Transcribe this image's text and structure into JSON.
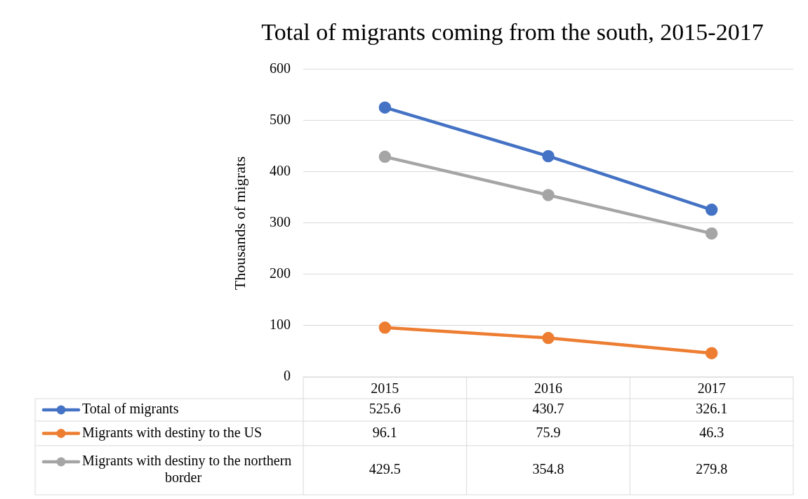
{
  "chart_data": {
    "type": "line",
    "title": "Total of migrants coming from the south, 2015-2017",
    "ylabel": "Thousands of migrats",
    "categories": [
      "2015",
      "2016",
      "2017"
    ],
    "series": [
      {
        "name": "Total of migrants",
        "color": "#4472c4",
        "values": [
          525.6,
          430.7,
          326.1
        ]
      },
      {
        "name": "Migrants with destiny to the US",
        "color": "#ed7d31",
        "values": [
          96.1,
          75.9,
          46.3
        ]
      },
      {
        "name": "Migrants with destiny to the northern border",
        "color": "#a5a5a5",
        "values": [
          429.5,
          354.8,
          279.8
        ]
      }
    ],
    "ylim": [
      0,
      600
    ],
    "yticks": [
      0,
      100,
      200,
      300,
      400,
      500,
      600
    ],
    "grid": "y",
    "legend": "bottom",
    "marker": "circle",
    "line_style": "solid",
    "data_labels": true
  }
}
